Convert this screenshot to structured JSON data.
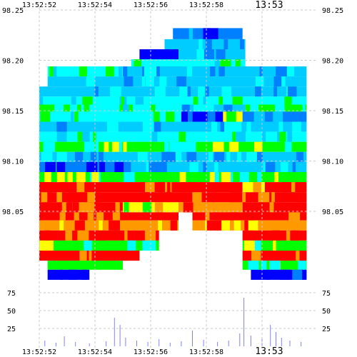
{
  "chart_data": {
    "type": "heatmap",
    "title": "",
    "xlabel": "",
    "ylabel": "",
    "x_ticks": [
      "13:52:52",
      "13:52:54",
      "13:52:56",
      "13:52:58",
      "13:53"
    ],
    "x_range_seconds": [
      0,
      10
    ],
    "x_tick_seconds": [
      0,
      2,
      4,
      6,
      8
    ],
    "price_ticks": [
      "98.25",
      "98.20",
      "98.15",
      "98.10",
      "98.05"
    ],
    "price_range": [
      98.05,
      98.25
    ],
    "volume_ticks": [
      "75",
      "50",
      "25"
    ],
    "volume_range": [
      0,
      100
    ],
    "grid": true,
    "colors": {
      "grid": "#c8c8c8",
      "volume_bars": "#8080ff",
      "levels": [
        "#0000ff",
        "#0080ff",
        "#00ccff",
        "#00ffff",
        "#00ff00",
        "#ffff00",
        "#ff9900",
        "#ff0000"
      ]
    },
    "bands": [
      {
        "price_from": 98.232,
        "price_to": 98.221,
        "segments": [
          [
            4.8,
            7.3,
            1
          ]
        ]
      },
      {
        "price_from": 98.221,
        "price_to": 98.211,
        "segments": [
          [
            4.5,
            7.4,
            2
          ]
        ]
      },
      {
        "price_from": 98.211,
        "price_to": 98.201,
        "segments": [
          [
            3.6,
            5.0,
            0
          ],
          [
            5.0,
            7.4,
            2
          ]
        ]
      },
      {
        "price_from": 98.201,
        "price_to": 98.194,
        "segments": [
          [
            3.3,
            7.4,
            3
          ]
        ]
      },
      {
        "price_from": 98.194,
        "price_to": 98.184,
        "segments": [
          [
            0.3,
            3.0,
            3
          ],
          [
            3.0,
            9.6,
            2
          ]
        ]
      },
      {
        "price_from": 98.184,
        "price_to": 98.174,
        "segments": [
          [
            0.3,
            9.6,
            2
          ]
        ]
      },
      {
        "price_from": 98.174,
        "price_to": 98.164,
        "segments": [
          [
            0.0,
            9.6,
            2
          ]
        ]
      },
      {
        "price_from": 98.164,
        "price_to": 98.156,
        "segments": [
          [
            0.0,
            9.6,
            3
          ]
        ]
      },
      {
        "price_from": 98.156,
        "price_to": 98.149,
        "segments": [
          [
            0.0,
            1.5,
            4
          ],
          [
            1.5,
            5.1,
            3
          ],
          [
            5.1,
            7.4,
            2
          ],
          [
            7.4,
            9.6,
            4
          ]
        ]
      },
      {
        "price_from": 98.149,
        "price_to": 98.139,
        "segments": [
          [
            0.0,
            5.1,
            3
          ],
          [
            5.1,
            6.6,
            0
          ],
          [
            6.6,
            7.3,
            5
          ],
          [
            7.3,
            9.6,
            1
          ]
        ]
      },
      {
        "price_from": 98.139,
        "price_to": 98.129,
        "segments": [
          [
            0.0,
            9.6,
            2
          ]
        ]
      },
      {
        "price_from": 98.129,
        "price_to": 98.119,
        "segments": [
          [
            0.0,
            9.6,
            3
          ]
        ]
      },
      {
        "price_from": 98.119,
        "price_to": 98.109,
        "segments": [
          [
            0.0,
            9.6,
            4
          ]
        ]
      },
      {
        "price_from": 98.109,
        "price_to": 98.099,
        "segments": [
          [
            0.0,
            9.6,
            2
          ]
        ]
      },
      {
        "price_from": 98.099,
        "price_to": 98.089,
        "segments": [
          [
            0.0,
            3.3,
            1
          ],
          [
            3.3,
            9.6,
            2
          ]
        ]
      },
      {
        "price_from": 98.089,
        "price_to": 98.079,
        "segments": [
          [
            0.0,
            9.6,
            4
          ]
        ]
      },
      {
        "price_from": 98.079,
        "price_to": 98.069,
        "segments": [
          [
            0.0,
            7.3,
            7
          ],
          [
            7.3,
            8.1,
            5
          ],
          [
            8.1,
            9.6,
            7
          ]
        ]
      },
      {
        "price_from": 98.069,
        "price_to": 98.059,
        "segments": [
          [
            0.0,
            9.6,
            7
          ]
        ]
      },
      {
        "price_from": 98.059,
        "price_to": 98.049,
        "segments": [
          [
            0.0,
            1.2,
            7
          ],
          [
            1.2,
            3.0,
            7
          ],
          [
            3.0,
            5.0,
            5
          ],
          [
            5.0,
            7.3,
            6
          ],
          [
            7.3,
            9.6,
            7
          ]
        ]
      },
      {
        "price_from": 98.049,
        "price_to": 98.041,
        "segments": [
          [
            0.0,
            5.0,
            7
          ],
          [
            5.5,
            9.6,
            7
          ]
        ]
      },
      {
        "price_from": 98.041,
        "price_to": 98.031,
        "segments": [
          [
            0.0,
            5.0,
            6
          ],
          [
            5.5,
            9.6,
            6
          ]
        ]
      },
      {
        "price_from": 98.031,
        "price_to": 98.021,
        "segments": [
          [
            0.0,
            4.3,
            7
          ],
          [
            7.3,
            9.6,
            7
          ]
        ]
      },
      {
        "price_from": 98.021,
        "price_to": 98.011,
        "segments": [
          [
            0.0,
            4.3,
            4
          ],
          [
            7.3,
            9.6,
            4
          ]
        ]
      },
      {
        "price_from": 98.011,
        "price_to": 98.001,
        "segments": [
          [
            0.0,
            3.6,
            7
          ],
          [
            7.3,
            9.6,
            7
          ]
        ]
      },
      {
        "price_from": 98.001,
        "price_to": 97.992,
        "segments": [
          [
            0.3,
            3.0,
            4
          ],
          [
            7.3,
            9.6,
            4
          ]
        ]
      },
      {
        "price_from": 97.992,
        "price_to": 97.982,
        "segments": [
          [
            0.3,
            1.8,
            0
          ],
          [
            7.6,
            9.6,
            0
          ]
        ]
      }
    ],
    "volume_spikes": [
      {
        "t": 0.2,
        "v": 8
      },
      {
        "t": 0.6,
        "v": 5
      },
      {
        "t": 0.9,
        "v": 14
      },
      {
        "t": 1.3,
        "v": 6
      },
      {
        "t": 1.8,
        "v": 4
      },
      {
        "t": 2.4,
        "v": 7
      },
      {
        "t": 2.7,
        "v": 40
      },
      {
        "t": 2.9,
        "v": 30
      },
      {
        "t": 3.1,
        "v": 12
      },
      {
        "t": 3.5,
        "v": 8
      },
      {
        "t": 3.9,
        "v": 6
      },
      {
        "t": 4.3,
        "v": 10
      },
      {
        "t": 4.7,
        "v": 5
      },
      {
        "t": 5.1,
        "v": 7
      },
      {
        "t": 5.5,
        "v": 22
      },
      {
        "t": 5.9,
        "v": 9
      },
      {
        "t": 6.4,
        "v": 6
      },
      {
        "t": 6.8,
        "v": 8
      },
      {
        "t": 7.2,
        "v": 18
      },
      {
        "t": 7.35,
        "v": 68
      },
      {
        "t": 7.6,
        "v": 15
      },
      {
        "t": 8.0,
        "v": 10
      },
      {
        "t": 8.3,
        "v": 30
      },
      {
        "t": 8.5,
        "v": 20
      },
      {
        "t": 8.7,
        "v": 12
      },
      {
        "t": 9.0,
        "v": 8
      },
      {
        "t": 9.4,
        "v": 6
      }
    ]
  }
}
